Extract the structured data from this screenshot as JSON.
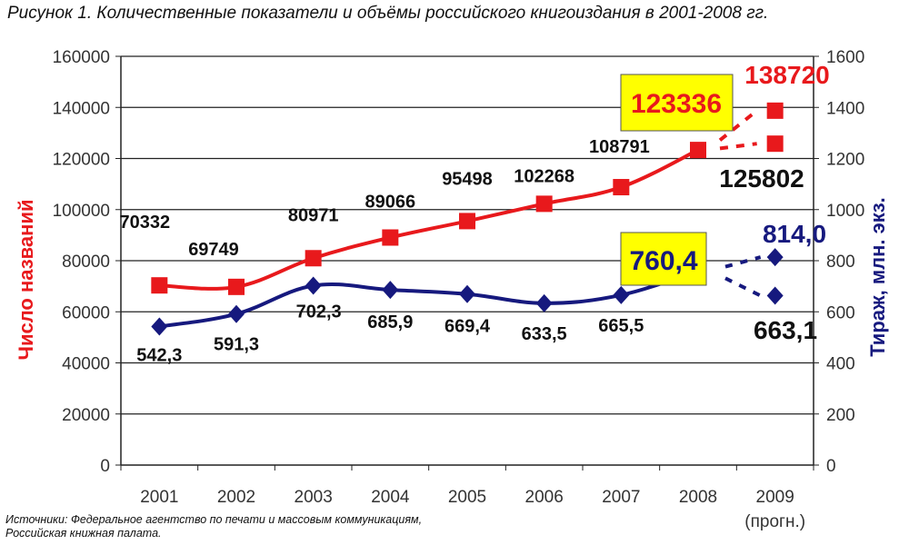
{
  "figure_title": "Рисунок 1. Количественные показатели и объёмы российского книгоиздания в 2001-2008 гг.",
  "source_lines": [
    "Источники: Федеральное агентство по печати и массовым коммуникациям,",
    "Российская книжная палата."
  ],
  "chart_data": {
    "type": "line",
    "categories": [
      "2001",
      "2002",
      "2003",
      "2004",
      "2005",
      "2006",
      "2007",
      "2008",
      "2009"
    ],
    "category_sublabels": [
      "",
      "",
      "",
      "",
      "",
      "",
      "",
      "",
      "(прогн.)"
    ],
    "y_left": {
      "label": "Число названий",
      "ylim": [
        0,
        160000
      ],
      "ticks": [
        "0",
        "20000",
        "40000",
        "60000",
        "80000",
        "100000",
        "120000",
        "140000",
        "160000"
      ]
    },
    "y_right": {
      "label": "Тираж, млн. экз.",
      "ylim": [
        0,
        1600
      ],
      "ticks": [
        "0",
        "200",
        "400",
        "600",
        "800",
        "1000",
        "1200",
        "1400",
        "1600"
      ]
    },
    "grid": true,
    "colors": {
      "titles": "#e8191c",
      "print_run": "#16197e",
      "highlight_box": "#ffff00"
    },
    "titles_series": {
      "values": [
        70332,
        69749,
        80971,
        89066,
        95498,
        102268,
        108791,
        123336
      ],
      "labels": [
        "70332",
        "69749",
        "80971",
        "89066",
        "95498",
        "102268",
        "108791",
        "123336"
      ],
      "forecast": [
        {
          "value": 138720,
          "label": "138720"
        },
        {
          "value": 125802,
          "label": "125802"
        }
      ]
    },
    "print_run_series": {
      "values": [
        542.3,
        591.3,
        702.3,
        685.9,
        669.4,
        633.5,
        665.5,
        760.4
      ],
      "labels": [
        "542,3",
        "591,3",
        "702,3",
        "685,9",
        "669,4",
        "633,5",
        "665,5",
        "760,4"
      ],
      "forecast": [
        {
          "value": 814.0,
          "label": "814,0"
        },
        {
          "value": 663.1,
          "label": "663,1"
        }
      ]
    }
  }
}
